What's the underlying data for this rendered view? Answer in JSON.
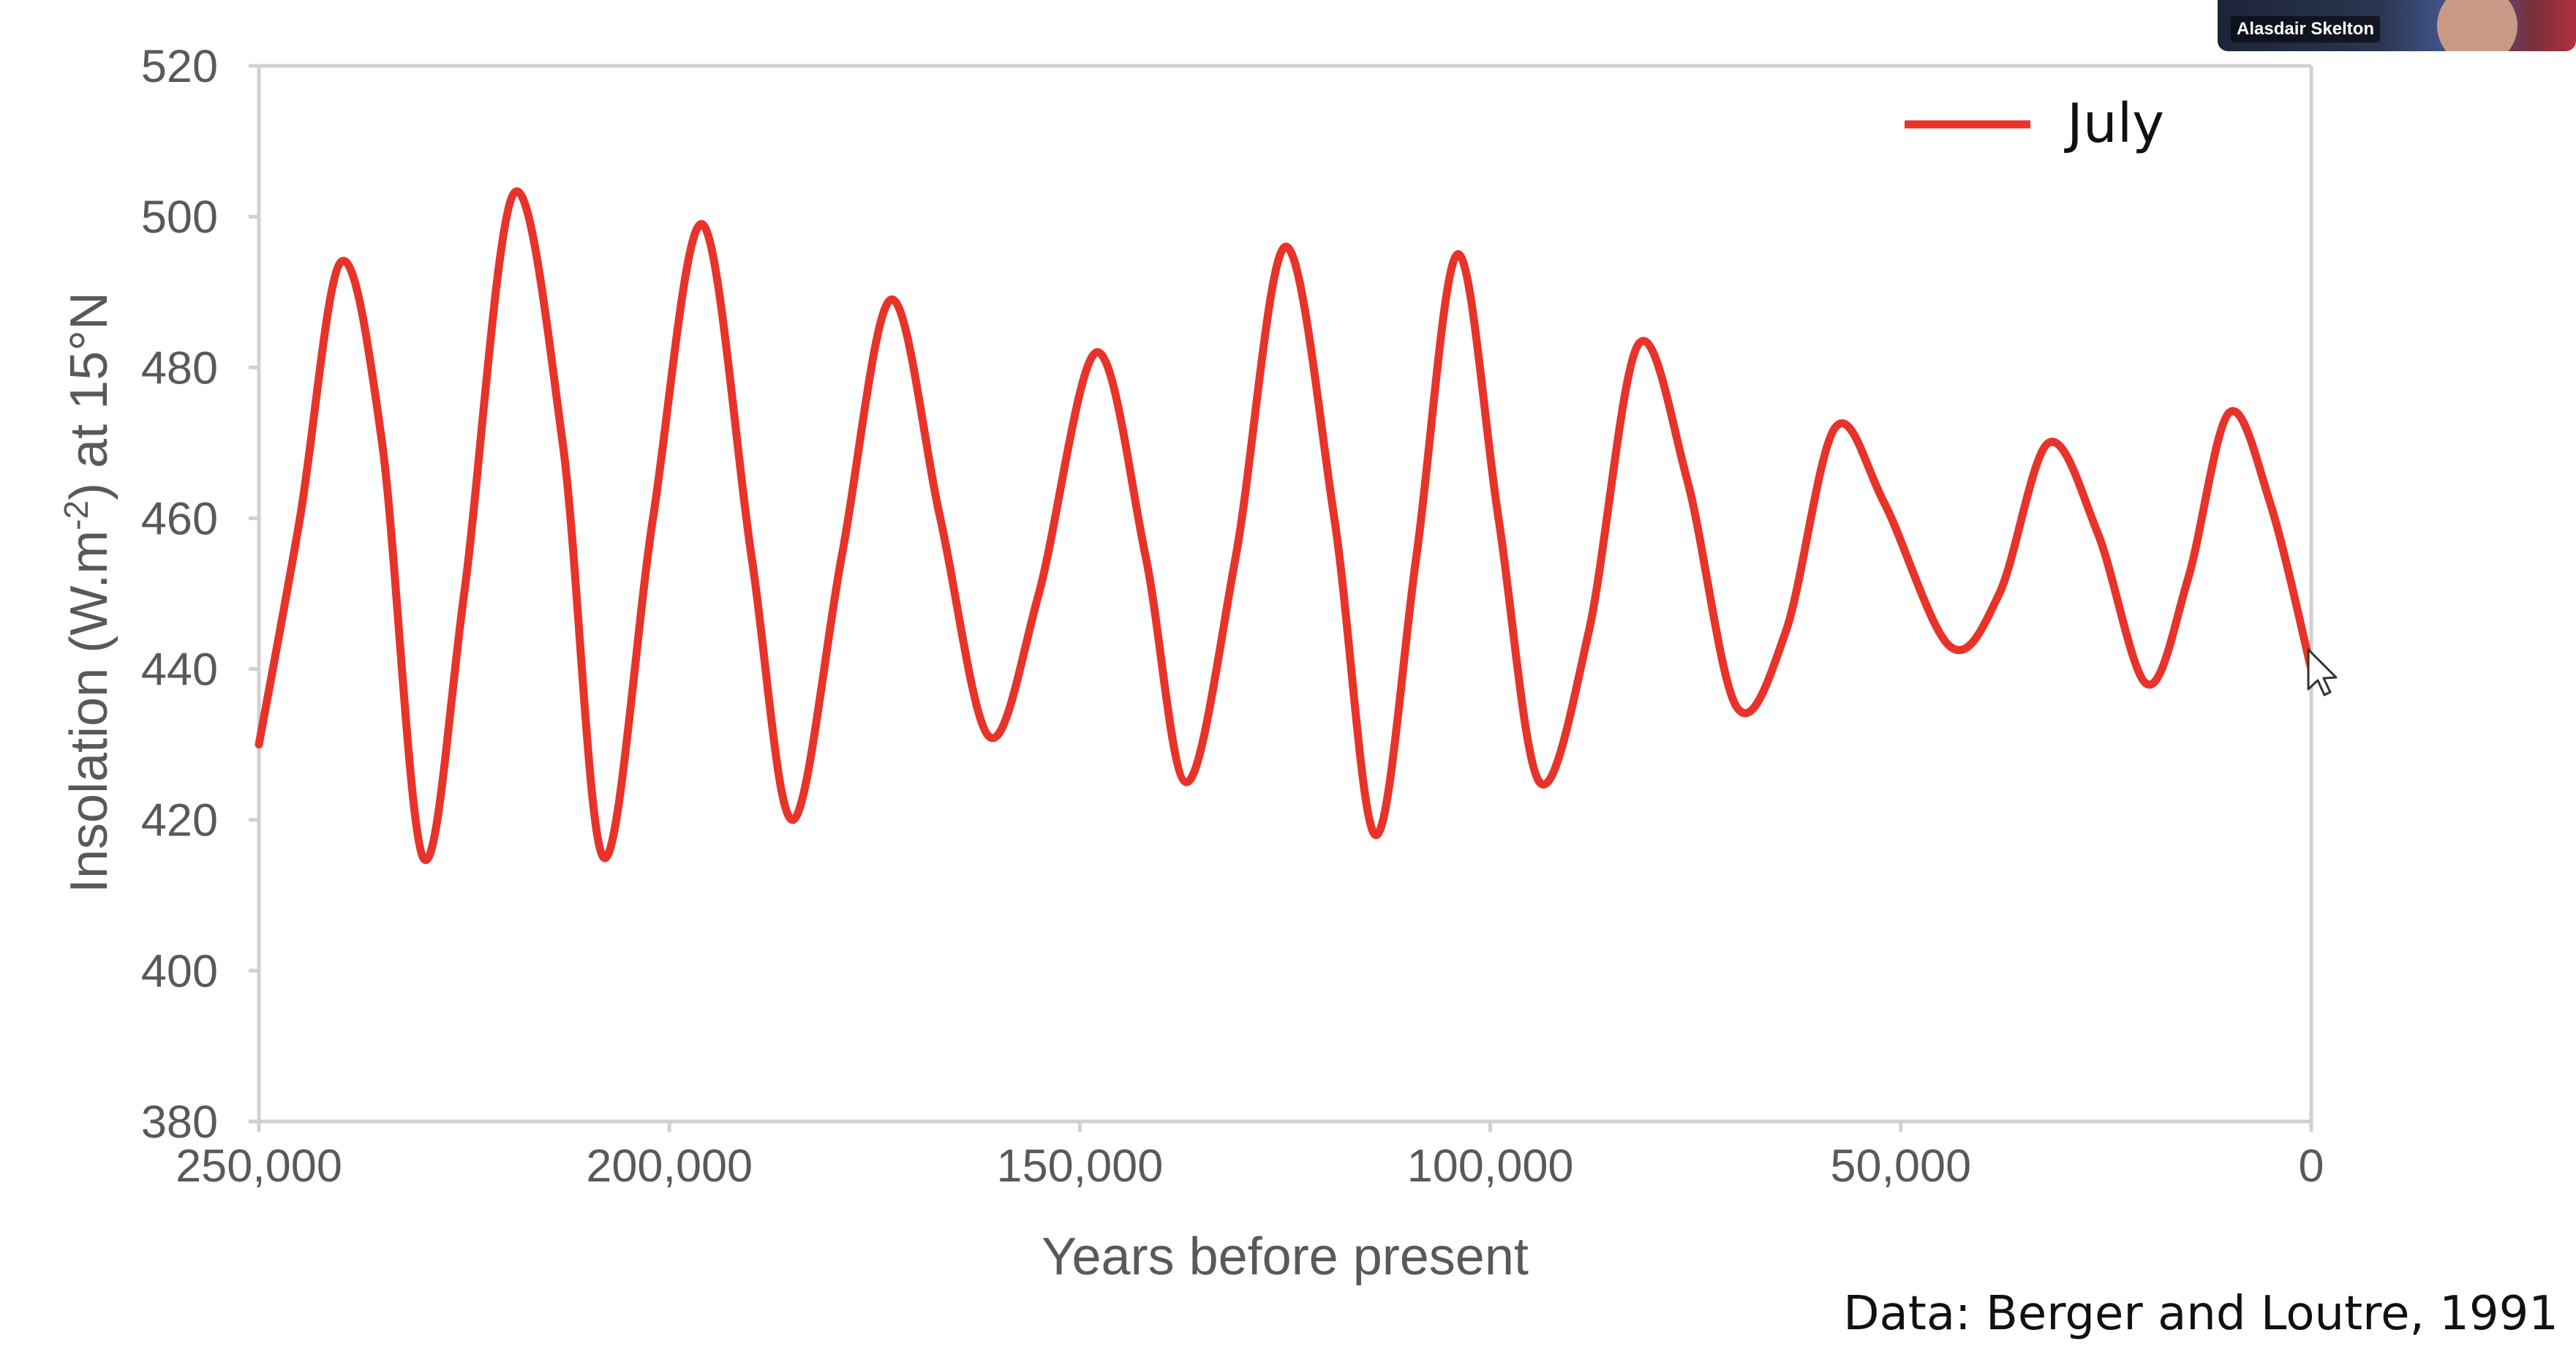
{
  "chart_data": {
    "type": "line",
    "title": "",
    "xlabel": "Years before present",
    "ylabel_main": "Insolation (W.m",
    "ylabel_sup": "-2",
    "ylabel_end": ") at 15°N",
    "xlim": [
      250000,
      0
    ],
    "ylim": [
      380,
      520
    ],
    "grid": false,
    "legend_position": "top-right",
    "x_ticks": [
      250000,
      200000,
      150000,
      100000,
      50000,
      0
    ],
    "x_tick_labels": [
      "250,000",
      "200,000",
      "150,000",
      "100,000",
      "50,000",
      "0"
    ],
    "y_ticks": [
      380,
      400,
      420,
      440,
      460,
      480,
      500,
      520
    ],
    "y_tick_labels": [
      "380",
      "400",
      "420",
      "440",
      "460",
      "480",
      "500",
      "520"
    ],
    "series": [
      {
        "name": "July",
        "color": "#e8332a",
        "x": [
          250000,
          245000,
          240000,
          235000,
          230000,
          225000,
          219000,
          213000,
          208000,
          202000,
          196000,
          190000,
          185000,
          179000,
          173000,
          167000,
          161000,
          155000,
          148000,
          142000,
          137000,
          131000,
          125000,
          119000,
          114000,
          109000,
          104000,
          99000,
          94000,
          88000,
          82000,
          76000,
          70000,
          64000,
          58000,
          52000,
          44000,
          38000,
          32000,
          26000,
          20000,
          15000,
          10000,
          5000,
          0
        ],
        "values": [
          430,
          460,
          494,
          470,
          415,
          450,
          503,
          470,
          415,
          460,
          499,
          455,
          420,
          455,
          489,
          460,
          431,
          450,
          482,
          455,
          425,
          455,
          496,
          460,
          418,
          455,
          495,
          460,
          425,
          445,
          483,
          465,
          435,
          445,
          472,
          462,
          443,
          450,
          470,
          458,
          438,
          452,
          474,
          462,
          440
        ]
      }
    ],
    "source_note": "Data: Berger and Loutre, 1991"
  },
  "video_tile": {
    "participant_name": "Alasdair Skelton"
  },
  "cursor": "pointer-cursor-icon"
}
